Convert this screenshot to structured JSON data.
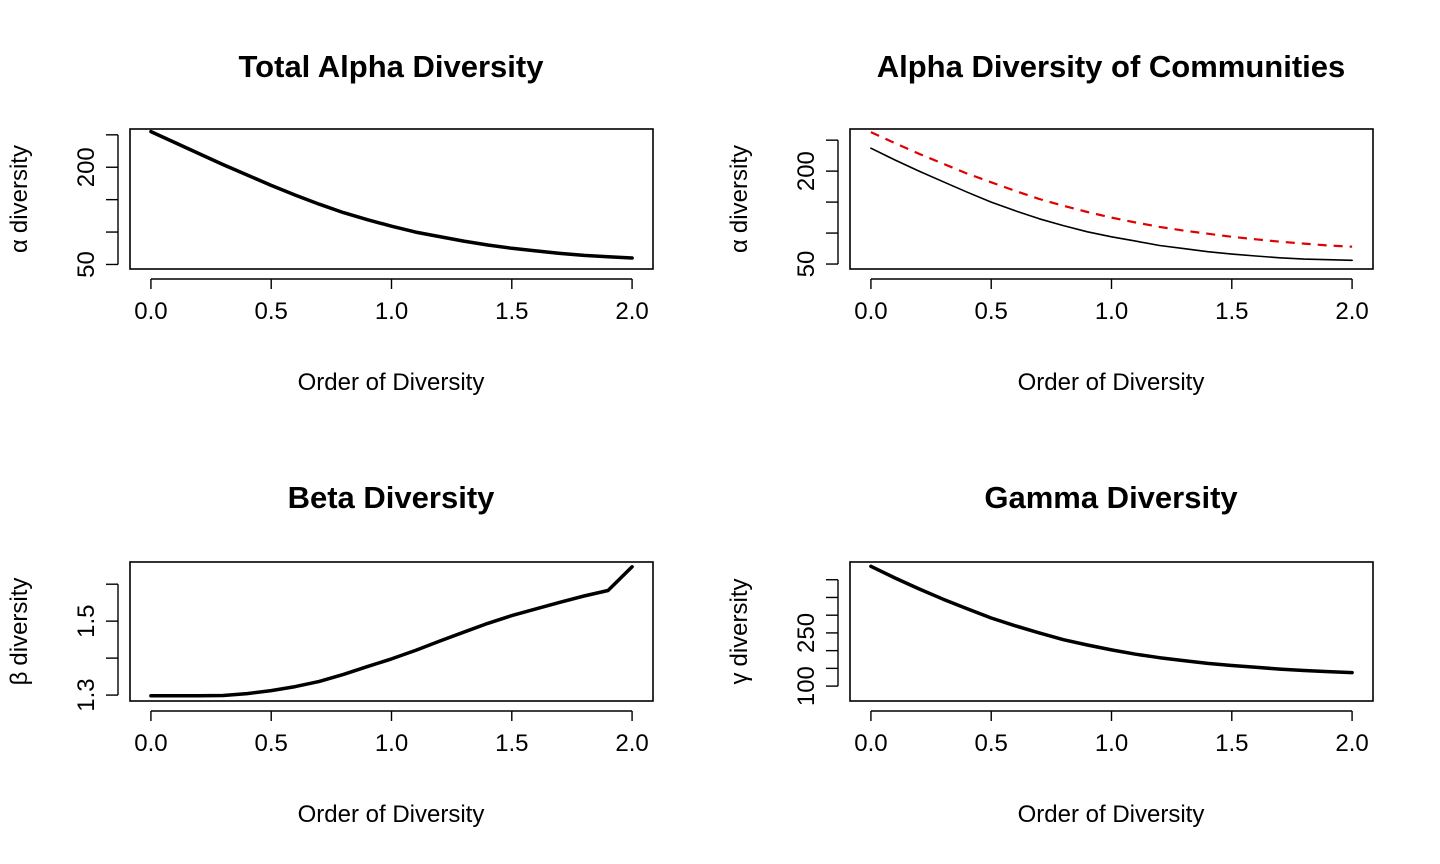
{
  "chart_data": [
    {
      "type": "line",
      "title": "Total Alpha Diversity",
      "xlabel": "Order of Diversity",
      "ylabel": {
        "symbol": "α",
        "text": "diversity"
      },
      "xlim": [
        0,
        2
      ],
      "ylim": [
        43,
        259
      ],
      "x_ticks": [
        0.0,
        0.5,
        1.0,
        1.5,
        2.0
      ],
      "x_tick_labels": [
        "0.0",
        "0.5",
        "1.0",
        "1.5",
        "2.0"
      ],
      "y_ticks": [
        50,
        100,
        150,
        200,
        250
      ],
      "y_tick_labels": [
        "50",
        "",
        "",
        "200",
        ""
      ],
      "series": [
        {
          "color": "#000000",
          "dash": "solid",
          "width": 3.5,
          "x": [
            0,
            0.1,
            0.2,
            0.3,
            0.4,
            0.5,
            0.6,
            0.7,
            0.8,
            0.9,
            1.0,
            1.1,
            1.2,
            1.3,
            1.4,
            1.5,
            1.6,
            1.7,
            1.8,
            1.9,
            2.0
          ],
          "y": [
            255,
            238,
            221,
            204,
            188,
            172,
            157,
            143,
            130,
            119,
            109,
            100,
            93,
            86,
            80,
            75,
            71,
            67,
            64,
            62,
            60
          ]
        }
      ]
    },
    {
      "type": "line",
      "title": "Alpha Diversity of Communities",
      "xlabel": "Order of Diversity",
      "ylabel": {
        "symbol": "α",
        "text": "diversity"
      },
      "xlim": [
        0,
        2
      ],
      "ylim": [
        42,
        268
      ],
      "x_ticks": [
        0.0,
        0.5,
        1.0,
        1.5,
        2.0
      ],
      "x_tick_labels": [
        "0.0",
        "0.5",
        "1.0",
        "1.5",
        "2.0"
      ],
      "y_ticks": [
        50,
        100,
        150,
        200,
        250
      ],
      "y_tick_labels": [
        "50",
        "",
        "",
        "200",
        ""
      ],
      "series": [
        {
          "color": "#000000",
          "dash": "solid",
          "width": 1.6,
          "x": [
            0,
            0.1,
            0.2,
            0.3,
            0.4,
            0.5,
            0.6,
            0.7,
            0.8,
            0.9,
            1.0,
            1.1,
            1.2,
            1.3,
            1.4,
            1.5,
            1.6,
            1.7,
            1.8,
            1.9,
            2.0
          ],
          "y": [
            237,
            218,
            200,
            183,
            166,
            150,
            136,
            123,
            112,
            102,
            94,
            87,
            80,
            75,
            70,
            66,
            63,
            60,
            58,
            57,
            56
          ]
        },
        {
          "color": "#e00000",
          "dash": "dashed",
          "width": 2.2,
          "x": [
            0,
            0.1,
            0.2,
            0.3,
            0.4,
            0.5,
            0.6,
            0.7,
            0.8,
            0.9,
            1.0,
            1.1,
            1.2,
            1.3,
            1.4,
            1.5,
            1.6,
            1.7,
            1.8,
            1.9,
            2.0
          ],
          "y": [
            263,
            245,
            228,
            212,
            196,
            182,
            168,
            155,
            144,
            134,
            125,
            117,
            110,
            104,
            99,
            94,
            90,
            86,
            83,
            80,
            78
          ]
        }
      ]
    },
    {
      "type": "line",
      "title": "Beta Diversity",
      "xlabel": "Order of Diversity",
      "ylabel": {
        "symbol": "β",
        "text": "diversity"
      },
      "xlim": [
        0,
        2
      ],
      "ylim": [
        1.284,
        1.66
      ],
      "x_ticks": [
        0.0,
        0.5,
        1.0,
        1.5,
        2.0
      ],
      "x_tick_labels": [
        "0.0",
        "0.5",
        "1.0",
        "1.5",
        "2.0"
      ],
      "y_ticks": [
        1.3,
        1.4,
        1.5,
        1.6
      ],
      "y_tick_labels": [
        "1.3",
        "",
        "1.5",
        ""
      ],
      "series": [
        {
          "color": "#000000",
          "dash": "solid",
          "width": 3.5,
          "x": [
            0,
            0.1,
            0.2,
            0.3,
            0.4,
            0.5,
            0.6,
            0.7,
            0.8,
            0.9,
            1.0,
            1.1,
            1.2,
            1.3,
            1.4,
            1.5,
            1.6,
            1.7,
            1.8,
            1.9,
            2.0
          ],
          "y": [
            1.298,
            1.298,
            1.298,
            1.299,
            1.304,
            1.312,
            1.323,
            1.337,
            1.356,
            1.377,
            1.398,
            1.421,
            1.446,
            1.47,
            1.494,
            1.515,
            1.533,
            1.551,
            1.568,
            1.583,
            1.647
          ]
        }
      ]
    },
    {
      "type": "line",
      "title": "Gamma Diversity",
      "xlabel": "Order of Diversity",
      "ylabel": {
        "symbol": "γ",
        "text": "diversity"
      },
      "xlim": [
        0,
        2
      ],
      "ylim": [
        58,
        450
      ],
      "x_ticks": [
        0.0,
        0.5,
        1.0,
        1.5,
        2.0
      ],
      "x_tick_labels": [
        "0.0",
        "0.5",
        "1.0",
        "1.5",
        "2.0"
      ],
      "y_ticks": [
        100,
        150,
        200,
        250,
        300,
        350,
        400
      ],
      "y_tick_labels": [
        "100",
        "",
        "",
        "250",
        "",
        "",
        ""
      ],
      "series": [
        {
          "color": "#000000",
          "dash": "solid",
          "width": 3.5,
          "x": [
            0,
            0.1,
            0.2,
            0.3,
            0.4,
            0.5,
            0.6,
            0.7,
            0.8,
            0.9,
            1.0,
            1.1,
            1.2,
            1.3,
            1.4,
            1.5,
            1.6,
            1.7,
            1.8,
            1.9,
            2.0
          ],
          "y": [
            438,
            405,
            374,
            345,
            318,
            292,
            270,
            250,
            231,
            216,
            202,
            190,
            180,
            172,
            164,
            158,
            153,
            148,
            144,
            141,
            138
          ]
        }
      ]
    }
  ]
}
